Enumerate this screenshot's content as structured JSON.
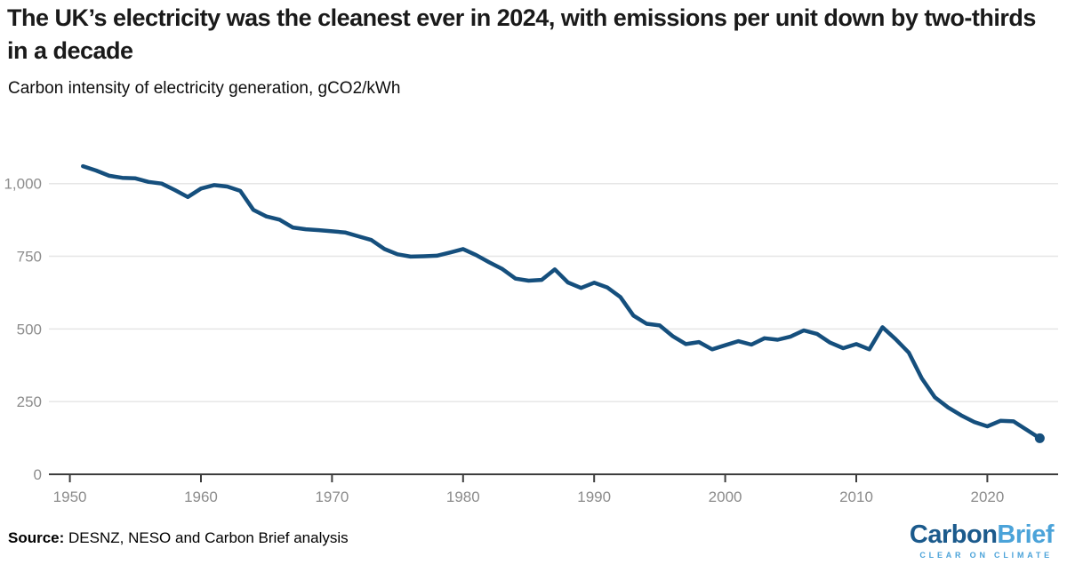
{
  "header": {
    "title": "The UK’s electricity was the cleanest ever in 2024, with emissions per unit down by two-thirds in a decade",
    "subtitle": "Carbon intensity of electricity generation, gCO2/kWh"
  },
  "footer": {
    "source_label": "Source:",
    "source_text": " DESNZ, NESO and Carbon Brief analysis",
    "logo": {
      "part1": "Carbon",
      "part2": "Brief",
      "tagline": "CLEAR ON CLIMATE"
    }
  },
  "colors": {
    "line": "#154f7d",
    "grid": "#e6e6e6",
    "axis": "#3d3d3d",
    "tick_label": "#8c8c8c",
    "logo_dark": "#1b5a8c",
    "logo_light": "#4ba3d9"
  },
  "chart_data": {
    "type": "line",
    "title": "The UK’s electricity was the cleanest ever in 2024, with emissions per unit down by two-thirds in a decade",
    "subtitle": "Carbon intensity of electricity generation, gCO2/kWh",
    "xlabel": "",
    "ylabel": "gCO2/kWh",
    "legend": "none",
    "grid": "horizontal",
    "xlim": [
      1948.4,
      2025.4
    ],
    "ylim": [
      0,
      1100
    ],
    "x": [
      1951,
      1952,
      1953,
      1954,
      1955,
      1956,
      1957,
      1958,
      1959,
      1960,
      1961,
      1962,
      1963,
      1964,
      1965,
      1966,
      1967,
      1968,
      1969,
      1970,
      1971,
      1972,
      1973,
      1974,
      1975,
      1976,
      1977,
      1978,
      1979,
      1980,
      1981,
      1982,
      1983,
      1984,
      1985,
      1986,
      1987,
      1988,
      1989,
      1990,
      1991,
      1992,
      1993,
      1994,
      1995,
      1996,
      1997,
      1998,
      1999,
      2000,
      2001,
      2002,
      2003,
      2004,
      2005,
      2006,
      2007,
      2008,
      2009,
      2010,
      2011,
      2012,
      2013,
      2014,
      2015,
      2016,
      2017,
      2018,
      2019,
      2020,
      2021,
      2022,
      2023,
      2024
    ],
    "series": [
      {
        "name": "Carbon intensity of electricity generation (gCO2/kWh)",
        "values": [
          1060,
          1045,
          1027,
          1020,
          1018,
          1006,
          1000,
          978,
          954,
          983,
          995,
          990,
          975,
          910,
          887,
          876,
          849,
          843,
          840,
          836,
          832,
          819,
          806,
          775,
          757,
          749,
          750,
          752,
          763,
          775,
          754,
          729,
          706,
          673,
          666,
          669,
          705,
          660,
          641,
          659,
          643,
          610,
          546,
          518,
          512,
          475,
          448,
          455,
          430,
          444,
          458,
          446,
          468,
          463,
          474,
          495,
          483,
          453,
          434,
          448,
          430,
          506,
          465,
          419,
          330,
          265,
          230,
          203,
          180,
          165,
          184,
          182,
          153,
          124
        ]
      }
    ],
    "x_ticks": {
      "values": [
        1950,
        1960,
        1970,
        1980,
        1990,
        2000,
        2010,
        2020
      ],
      "labels": [
        "1950",
        "1960",
        "1970",
        "1980",
        "1990",
        "2000",
        "2010",
        "2020"
      ]
    },
    "y_ticks": {
      "values": [
        0,
        250,
        500,
        750,
        1000
      ],
      "labels": [
        "0",
        "250",
        "500",
        "750",
        "1,000"
      ]
    },
    "end_marker": {
      "year": 2024,
      "value": 124
    }
  }
}
